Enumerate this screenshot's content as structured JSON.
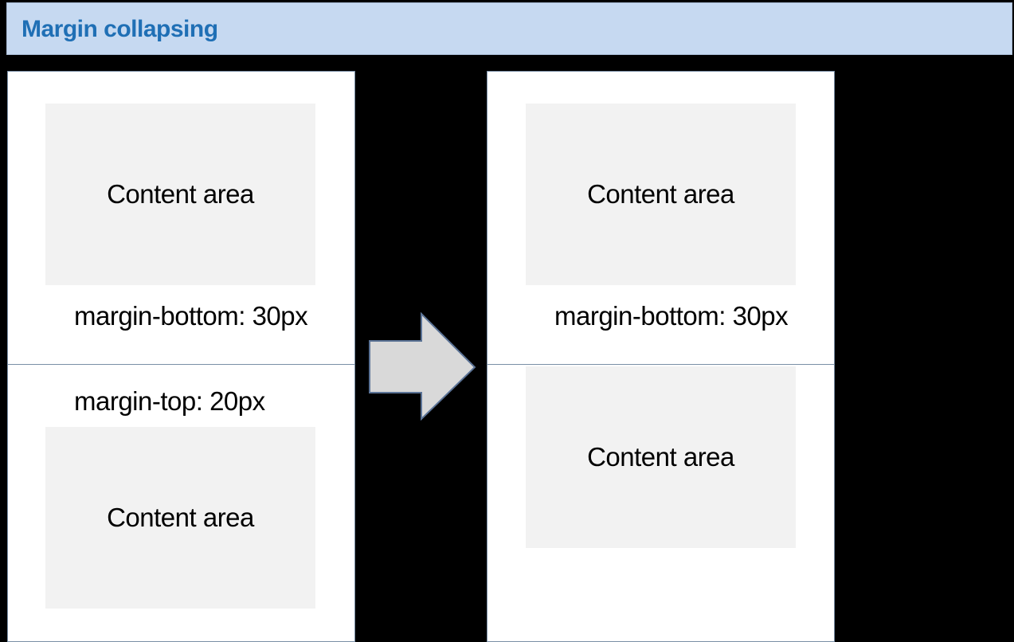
{
  "title": "Margin collapsing",
  "left_panel": {
    "top_content": "Content area",
    "top_margin_label": "margin-bottom: 30px",
    "bottom_margin_label": "margin-top: 20px",
    "bottom_content": "Content area"
  },
  "right_panel": {
    "top_content": "Content area",
    "margin_label": "margin-bottom: 30px",
    "bottom_content": "Content area"
  },
  "arrow_icon": "right-arrow-icon",
  "colors": {
    "background": "#000000",
    "title_bar": "#c6d9f1",
    "title_text": "#1f6fb5",
    "content_box": "#f2f2f2",
    "border": "#7a8fa6",
    "arrow_fill": "#d9d9d9"
  }
}
